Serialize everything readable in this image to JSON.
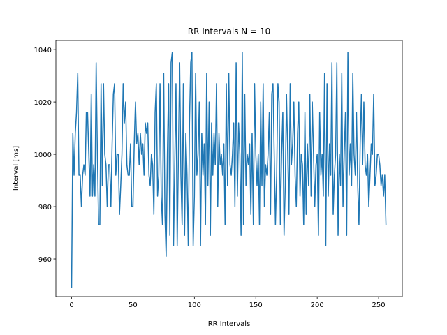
{
  "chart_data": {
    "type": "line",
    "title": "RR Intervals N = 10",
    "xlabel": "RR Intervals",
    "ylabel": "Interval [ms]",
    "color": "#1f77b4",
    "xlim": [
      -12.8,
      269.3
    ],
    "ylim": [
      945.6,
      1043.5
    ],
    "xticks": [
      0,
      50,
      100,
      150,
      200,
      250
    ],
    "yticks": [
      960,
      980,
      1000,
      1020,
      1040
    ],
    "values": [
      949,
      1008,
      992,
      1008,
      1016,
      1031,
      992,
      992,
      980,
      992,
      996,
      992,
      1016,
      1016,
      1000,
      984,
      1023,
      984,
      996,
      984,
      1035,
      1000,
      973,
      973,
      1027,
      988,
      1027,
      1000,
      996,
      980,
      996,
      996,
      980,
      1004,
      1023,
      1027,
      992,
      1000,
      1000,
      977,
      988,
      1000,
      1027,
      1012,
      1020,
      996,
      992,
      992,
      1004,
      980,
      980,
      1004,
      1020,
      1004,
      1008,
      996,
      1008,
      1000,
      1004,
      992,
      1012,
      1008,
      1012,
      992,
      988,
      1000,
      996,
      977,
      1016,
      1027,
      984,
      992,
      1027,
      984,
      973,
      1031,
      977,
      961,
      1000,
      1027,
      969,
      1035,
      1039,
      965,
      996,
      1027,
      965,
      1000,
      1035,
      992,
      973,
      1027,
      969,
      1008,
      992,
      965,
      1012,
      1035,
      1039,
      965,
      984,
      1031,
      992,
      1000,
      1020,
      965,
      1008,
      992,
      1004,
      973,
      1031,
      988,
      1020,
      969,
      1012,
      992,
      1008,
      996,
      1027,
      980,
      1008,
      996,
      1000,
      992,
      1004,
      973,
      1027,
      988,
      1031,
      996,
      992,
      1000,
      1012,
      980,
      1035,
      984,
      1012,
      1000,
      969,
      1039,
      973,
      1023,
      988,
      1000,
      996,
      1004,
      977,
      1008,
      973,
      1027,
      1000,
      988,
      1000,
      973,
      1020,
      988,
      1027,
      980,
      996,
      992,
      1000,
      1016,
      977,
      1023,
      1027,
      1000,
      973,
      992,
      1027,
      1020,
      973,
      1000,
      1016,
      969,
      988,
      1023,
      1000,
      977,
      1027,
      996,
      1004,
      1020,
      992,
      980,
      1008,
      1020,
      984,
      1000,
      996,
      973,
      1016,
      977,
      1004,
      988,
      1023,
      984,
      1020,
      1000,
      980,
      996,
      1000,
      969,
      1016,
      992,
      1000,
      984,
      1031,
      965,
      1027,
      984,
      1004,
      992,
      1035,
      977,
      992,
      1000,
      1035,
      969,
      1000,
      988,
      1031,
      980,
      1000,
      1016,
      969,
      1039,
      992,
      1004,
      988,
      1031,
      1000,
      992,
      1016,
      988,
      973,
      1004,
      1023,
      996,
      1020,
      996,
      992,
      1000,
      980,
      992,
      1004,
      1000,
      1023,
      988,
      992,
      1000,
      1000,
      996,
      988,
      992,
      984,
      992,
      973
    ]
  }
}
